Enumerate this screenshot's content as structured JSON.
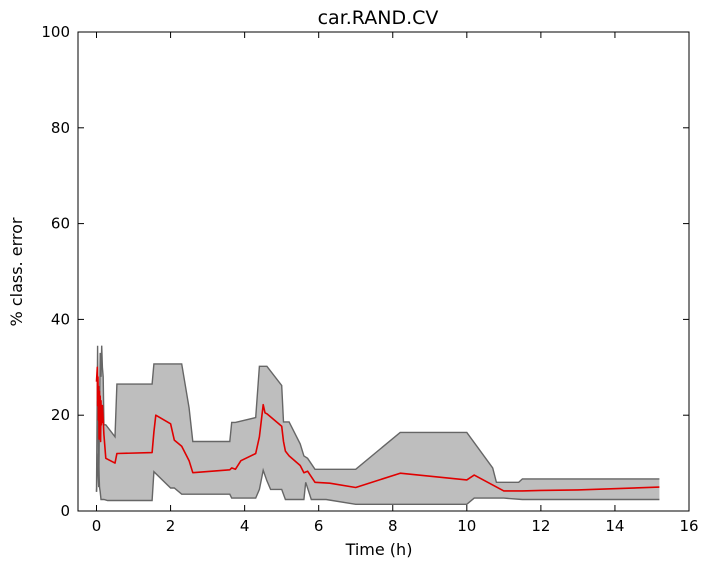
{
  "chart_data": {
    "type": "line",
    "title": "car.RAND.CV",
    "xlabel": "Time (h)",
    "ylabel": "% class. error",
    "xlim": [
      -0.5,
      16
    ],
    "ylim": [
      0,
      100
    ],
    "xticks": [
      0,
      2,
      4,
      6,
      8,
      10,
      12,
      14,
      16
    ],
    "yticks": [
      0,
      20,
      40,
      60,
      80,
      100
    ],
    "xtick_labels": [
      "0",
      "2",
      "4",
      "6",
      "8",
      "10",
      "12",
      "14",
      "16"
    ],
    "ytick_labels": [
      "0",
      "20",
      "40",
      "60",
      "80",
      "100"
    ],
    "grid": false,
    "band_color": "#bebebe",
    "band_edge_color": "#666666",
    "line_color": "#e00000",
    "upper": {
      "x": [
        0,
        0.03,
        0.06,
        0.08,
        0.1,
        0.12,
        0.14,
        0.16,
        0.18,
        0.2,
        0.25,
        0.5,
        0.55,
        1.5,
        1.55,
        2.3,
        2.5,
        2.6,
        3.6,
        3.65,
        3.75,
        4.3,
        4.4,
        4.6,
        5.0,
        5.05,
        5.1,
        5.2,
        5.5,
        5.6,
        5.7,
        5.9,
        7.0,
        8.2,
        10.0,
        10.7,
        10.8,
        11.4,
        11.5,
        15.2
      ],
      "y": [
        4,
        34.5,
        5,
        20,
        33,
        28,
        34.5,
        30,
        28,
        18,
        18,
        15.5,
        26.5,
        26.5,
        30.7,
        30.7,
        21.5,
        14.5,
        14.5,
        18.5,
        18.5,
        19.5,
        30.2,
        30.2,
        26.2,
        18.6,
        18.6,
        18.6,
        14,
        11.5,
        11,
        8.7,
        8.7,
        16.4,
        16.4,
        9,
        6,
        6,
        6.7,
        6.7
      ]
    },
    "lower": {
      "x": [
        0,
        0.05,
        0.08,
        0.1,
        0.12,
        0.15,
        0.2,
        0.3,
        1.5,
        1.55,
        2.0,
        2.1,
        2.3,
        3.6,
        3.65,
        4.3,
        4.4,
        4.5,
        4.6,
        4.7,
        5.0,
        5.1,
        5.6,
        5.65,
        5.8,
        6.2,
        7.0,
        8.2,
        10.0,
        10.2,
        11.0,
        11.5,
        15.2
      ],
      "y": [
        4,
        12,
        5,
        4,
        2.4,
        2.4,
        2.4,
        2.2,
        2.2,
        8.2,
        4.8,
        4.8,
        3.5,
        3.5,
        2.7,
        2.7,
        4.5,
        8.5,
        6.3,
        4.5,
        4.5,
        2.4,
        2.4,
        6,
        2.4,
        2.4,
        1.4,
        1.4,
        1.4,
        2.7,
        2.7,
        2.4,
        2.4
      ]
    },
    "series": [
      {
        "x": [
          0,
          0.02,
          0.03,
          0.04,
          0.05,
          0.06,
          0.07,
          0.08,
          0.09,
          0.1,
          0.11,
          0.12,
          0.13,
          0.14,
          0.15,
          0.16,
          0.18,
          0.2,
          0.25,
          0.5,
          0.55,
          1.5,
          1.55,
          1.6,
          2.0,
          2.1,
          2.3,
          2.5,
          2.6,
          3.6,
          3.65,
          3.75,
          3.9,
          4.3,
          4.4,
          4.5,
          4.55,
          4.6,
          5.0,
          5.05,
          5.1,
          5.2,
          5.5,
          5.6,
          5.7,
          5.9,
          6.3,
          7.0,
          8.2,
          10.0,
          10.2,
          11.0,
          11.5,
          12.0,
          13.0,
          15.2
        ],
        "y": [
          27,
          30,
          22,
          28,
          19,
          26,
          15,
          25,
          19,
          24,
          14.5,
          23,
          18,
          22,
          18.5,
          22,
          19,
          16,
          11,
          10,
          12,
          12.2,
          16.5,
          20,
          18.2,
          14.8,
          13.5,
          10.5,
          8,
          8.6,
          9,
          8.7,
          10.5,
          12,
          15.5,
          22.2,
          20.5,
          20.3,
          17.7,
          14.5,
          12.5,
          11.5,
          9.5,
          8,
          8.3,
          6,
          5.8,
          4.9,
          7.9,
          6.5,
          7.5,
          4.2,
          4.2,
          4.3,
          4.4,
          5
        ]
      }
    ]
  }
}
